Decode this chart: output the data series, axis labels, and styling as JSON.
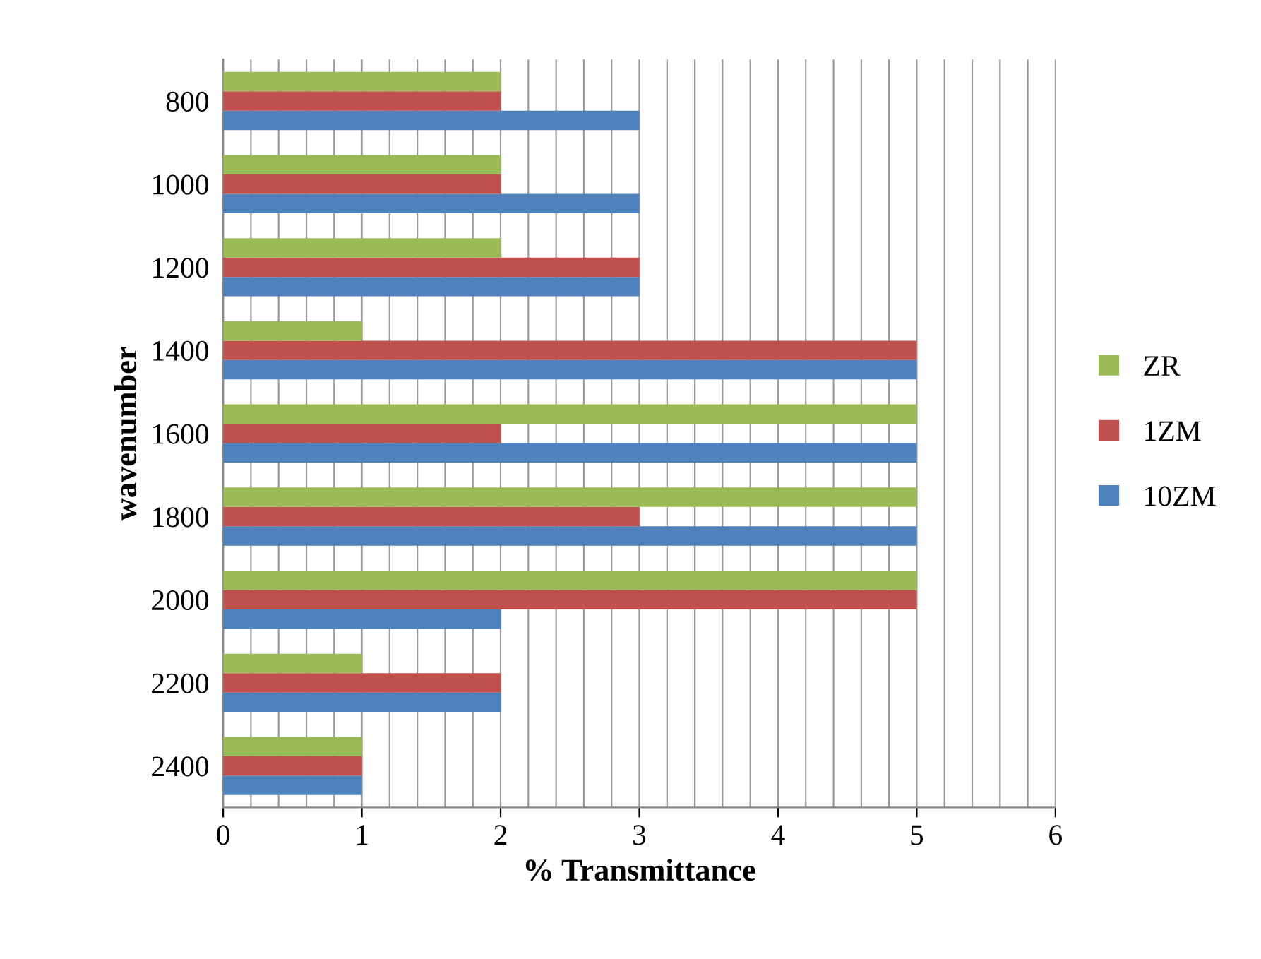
{
  "chart_data": {
    "type": "bar",
    "orientation": "horizontal",
    "xlabel": "% Transmittance",
    "ylabel": "wavenumber",
    "categories": [
      "800",
      "1000",
      "1200",
      "1400",
      "1600",
      "1800",
      "2000",
      "2200",
      "2400"
    ],
    "series": [
      {
        "name": "10ZM",
        "color": "#4f81bd",
        "values": [
          3,
          3,
          3,
          5,
          5,
          5,
          2,
          2,
          1
        ]
      },
      {
        "name": "1ZM",
        "color": "#c0504d",
        "values": [
          2,
          2,
          3,
          5,
          2,
          3,
          5,
          2,
          1
        ]
      },
      {
        "name": "ZR",
        "color": "#9bbb59",
        "values": [
          2,
          2,
          2,
          1,
          5,
          5,
          5,
          1,
          1
        ]
      }
    ],
    "xlim": [
      0,
      6
    ],
    "xticks": [
      0,
      1,
      2,
      3,
      4,
      5,
      6
    ],
    "grid": "x",
    "legend": "right"
  }
}
